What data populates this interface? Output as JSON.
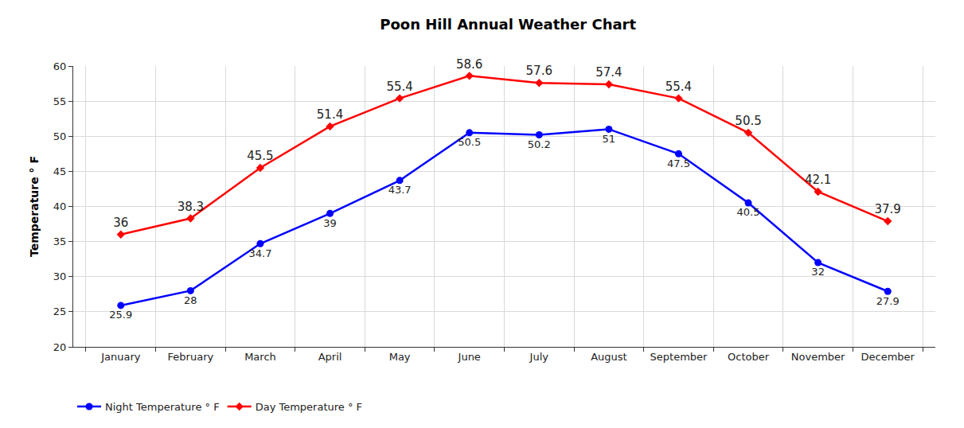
{
  "chart_data": {
    "type": "line",
    "title": "Poon Hill Annual Weather Chart",
    "y_label": "Temperature ° F",
    "categories": [
      "January",
      "February",
      "March",
      "April",
      "May",
      "June",
      "July",
      "August",
      "September",
      "October",
      "November",
      "December"
    ],
    "series": [
      {
        "name": "Night Temperature ° F",
        "color": "#0000ff",
        "marker": "circle",
        "line_style": "solid",
        "values": [
          25.9,
          28,
          34.7,
          39,
          43.7,
          50.5,
          50.2,
          51,
          47.5,
          40.5,
          32,
          27.9
        ]
      },
      {
        "name": "Day Temperature ° F",
        "color": "#ff0000",
        "marker": "diamond",
        "line_style": "solid",
        "values": [
          36,
          38.3,
          45.5,
          51.4,
          55.4,
          58.6,
          57.6,
          57.4,
          55.4,
          50.5,
          42.1,
          37.9
        ]
      }
    ],
    "ylim": [
      20,
      60
    ],
    "yticks": [
      20,
      25,
      30,
      35,
      40,
      45,
      50,
      55,
      60
    ],
    "grid": true,
    "data_labels": true,
    "legend": "bottom"
  }
}
